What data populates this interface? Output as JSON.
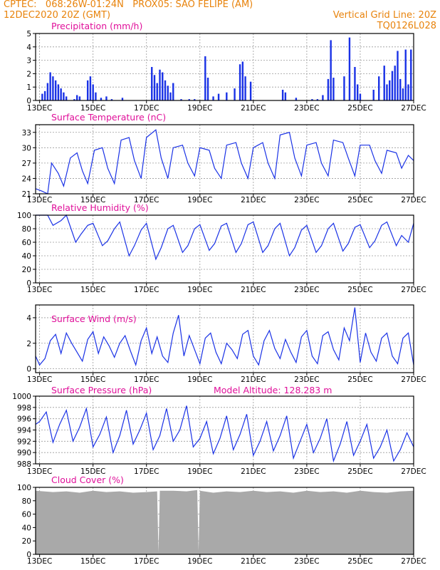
{
  "header": {
    "line1_left": "CPTEC:   068:26W-01:24N   PROX05: SAO FELIPE (AM)",
    "line2_left": "12DEC2020 20Z (GMT)",
    "line2_right": "Vertical Grid Line: 20Z",
    "line3_right": "TQ0126L028"
  },
  "colors": {
    "header": "#e8830c",
    "title": "#e0109a",
    "series": "#1a32e6",
    "cloud": "#a9a9a9",
    "grid": "#9a9a9a"
  },
  "x_ticks": [
    "13DEC",
    "15DEC",
    "17DEC",
    "19DEC",
    "21DEC",
    "23DEC",
    "25DEC",
    "27DEC"
  ],
  "chart_data": [
    {
      "type": "bar",
      "title": "Precipitation (mm/h)",
      "x_range_days": [
        12.85,
        27.0
      ],
      "ylim": [
        0,
        5
      ],
      "yticks": [
        0,
        1,
        2,
        3,
        4,
        5
      ],
      "grid": true,
      "series": [
        {
          "x": [
            13.1,
            13.2,
            13.3,
            13.4,
            13.5,
            13.6,
            13.7,
            13.8,
            13.9,
            14.0,
            14.3,
            14.4,
            14.5,
            14.8,
            14.9,
            15.0,
            15.1,
            15.3,
            15.5,
            15.7,
            16.1,
            17.2,
            17.3,
            17.4,
            17.5,
            17.6,
            17.7,
            17.8,
            17.9,
            18.0,
            18.3,
            18.6,
            18.8,
            19.2,
            19.3,
            19.5,
            19.7,
            20.0,
            20.3,
            20.5,
            20.6,
            20.7,
            20.9,
            22.1,
            22.2,
            22.6,
            23.2,
            23.4,
            23.6,
            23.8,
            23.9,
            24.0,
            24.4,
            24.6,
            24.8,
            24.9,
            25.0,
            25.5,
            25.7,
            25.9,
            26.0,
            26.1,
            26.2,
            26.3,
            26.4,
            26.5,
            26.6,
            26.7,
            26.8,
            26.9
          ],
          "values": [
            0.5,
            0.7,
            1.3,
            2.1,
            1.8,
            1.5,
            1.2,
            0.9,
            0.6,
            0.3,
            0.1,
            0.4,
            0.3,
            1.5,
            1.8,
            1.2,
            0.6,
            0.2,
            0.3,
            0.1,
            0.2,
            2.5,
            1.9,
            1.3,
            2.3,
            2.1,
            1.5,
            1.1,
            0.6,
            1.3,
            0.1,
            0.1,
            0.1,
            3.3,
            1.7,
            0.3,
            0.5,
            0.6,
            0.9,
            2.7,
            2.9,
            1.8,
            1.4,
            0.8,
            0.6,
            0.2,
            0.1,
            0.1,
            0.4,
            1.6,
            4.5,
            1.7,
            1.8,
            4.7,
            2.5,
            1.2,
            0.5,
            0.8,
            1.8,
            2.6,
            1.2,
            1.5,
            2.2,
            2.6,
            3.7,
            1.6,
            0.9,
            3.8,
            1.2,
            3.8
          ]
        }
      ]
    },
    {
      "type": "line",
      "title": "Surface Temperature (nC)",
      "ylim": [
        21,
        34.5
      ],
      "yticks": [
        21,
        24,
        27,
        30,
        33
      ],
      "grid": true,
      "series": [
        {
          "x": [
            12.85,
            13.1,
            13.3,
            13.45,
            13.7,
            13.9,
            14.15,
            14.4,
            14.6,
            14.8,
            15.05,
            15.35,
            15.55,
            15.8,
            16.05,
            16.35,
            16.55,
            16.8,
            17.0,
            17.35,
            17.55,
            17.8,
            18.0,
            18.35,
            18.55,
            18.8,
            19.0,
            19.35,
            19.55,
            19.8,
            20.0,
            20.35,
            20.55,
            20.8,
            21.0,
            21.35,
            21.55,
            21.8,
            22.0,
            22.35,
            22.55,
            22.8,
            23.0,
            23.35,
            23.55,
            23.8,
            24.0,
            24.35,
            24.55,
            24.8,
            25.0,
            25.35,
            25.55,
            25.8,
            26.0,
            26.35,
            26.55,
            26.8,
            27.0
          ],
          "values": [
            22.0,
            21.5,
            21.0,
            27.0,
            25.0,
            22.5,
            28.0,
            29.0,
            25.5,
            23.0,
            29.5,
            30.0,
            26.0,
            23.0,
            31.5,
            32.0,
            27.5,
            24.0,
            32.0,
            33.5,
            28.0,
            24.0,
            30.0,
            30.5,
            27.0,
            24.5,
            30.0,
            29.5,
            26.0,
            24.0,
            30.5,
            31.0,
            27.0,
            24.0,
            30.0,
            31.0,
            27.0,
            24.0,
            32.5,
            33.0,
            28.0,
            24.5,
            30.5,
            31.0,
            27.0,
            24.5,
            31.5,
            31.0,
            28.0,
            24.5,
            30.5,
            30.5,
            27.5,
            25.0,
            29.5,
            29.0,
            26.0,
            28.5,
            27.5
          ]
        }
      ]
    },
    {
      "type": "line",
      "title": "Relative Humidity (%)",
      "ylim": [
        0,
        100
      ],
      "yticks": [
        0,
        20,
        40,
        60,
        80,
        100
      ],
      "grid": true,
      "series": [
        {
          "x": [
            12.85,
            13.0,
            13.3,
            13.5,
            13.8,
            14.0,
            14.35,
            14.55,
            14.8,
            15.0,
            15.35,
            15.55,
            15.8,
            16.0,
            16.35,
            16.55,
            16.8,
            17.0,
            17.35,
            17.55,
            17.8,
            18.0,
            18.35,
            18.55,
            18.8,
            19.0,
            19.35,
            19.55,
            19.8,
            20.0,
            20.35,
            20.55,
            20.8,
            21.0,
            21.35,
            21.55,
            21.8,
            22.0,
            22.35,
            22.55,
            22.8,
            23.0,
            23.35,
            23.55,
            23.8,
            24.0,
            24.35,
            24.55,
            24.8,
            25.0,
            25.35,
            25.55,
            25.8,
            26.0,
            26.35,
            26.55,
            26.8,
            27.0
          ],
          "values": [
            100,
            100,
            100,
            85,
            92,
            100,
            60,
            72,
            85,
            88,
            55,
            62,
            80,
            90,
            40,
            55,
            78,
            88,
            35,
            52,
            80,
            85,
            45,
            55,
            80,
            86,
            48,
            58,
            84,
            88,
            45,
            58,
            86,
            90,
            45,
            55,
            80,
            88,
            40,
            52,
            78,
            85,
            45,
            55,
            80,
            88,
            47,
            58,
            82,
            86,
            52,
            62,
            85,
            90,
            55,
            70,
            60,
            88
          ]
        }
      ]
    },
    {
      "type": "line",
      "title": "Surface Wind (m/s)",
      "ylim": [
        -0.3,
        5
      ],
      "yticks": [
        0,
        2,
        4
      ],
      "grid": true,
      "series": [
        {
          "x": [
            12.85,
            13.0,
            13.2,
            13.4,
            13.6,
            13.8,
            14.0,
            14.2,
            14.4,
            14.6,
            14.8,
            15.0,
            15.2,
            15.4,
            15.6,
            15.8,
            16.0,
            16.2,
            16.4,
            16.6,
            16.8,
            17.0,
            17.2,
            17.4,
            17.6,
            17.8,
            18.0,
            18.2,
            18.4,
            18.6,
            18.8,
            19.0,
            19.2,
            19.4,
            19.6,
            19.8,
            20.0,
            20.2,
            20.4,
            20.6,
            20.8,
            21.0,
            21.2,
            21.4,
            21.6,
            21.8,
            22.0,
            22.2,
            22.4,
            22.6,
            22.8,
            23.0,
            23.2,
            23.4,
            23.6,
            23.8,
            24.0,
            24.2,
            24.4,
            24.6,
            24.8,
            25.0,
            25.2,
            25.4,
            25.6,
            25.8,
            26.0,
            26.2,
            26.4,
            26.6,
            26.8,
            27.0
          ],
          "values": [
            1.0,
            0.3,
            0.8,
            2.2,
            2.7,
            1.2,
            2.8,
            2.0,
            1.3,
            0.6,
            2.3,
            2.9,
            1.2,
            2.5,
            1.8,
            0.9,
            2.0,
            2.6,
            1.4,
            0.3,
            2.2,
            3.2,
            1.2,
            2.5,
            1.0,
            0.5,
            2.8,
            4.2,
            1.0,
            2.6,
            1.5,
            0.4,
            2.4,
            2.8,
            1.3,
            0.4,
            2.0,
            1.5,
            0.8,
            2.7,
            3.0,
            1.0,
            0.3,
            2.2,
            3.0,
            1.6,
            0.8,
            2.3,
            1.3,
            0.5,
            2.5,
            3.0,
            1.0,
            0.4,
            2.6,
            2.9,
            1.5,
            0.7,
            3.2,
            2.2,
            4.8,
            0.5,
            2.8,
            1.3,
            0.6,
            2.4,
            2.8,
            1.0,
            0.4,
            2.4,
            2.8,
            0.3
          ]
        }
      ]
    },
    {
      "type": "line",
      "title": "Surface Pressure (hPa)",
      "annotation": "Model Altitude: 128.283 m",
      "ylim": [
        988,
        1000
      ],
      "yticks": [
        988,
        990,
        992,
        994,
        996,
        998,
        1000
      ],
      "grid": true,
      "series": [
        {
          "x": [
            12.85,
            13.0,
            13.25,
            13.5,
            13.75,
            14.0,
            14.25,
            14.5,
            14.75,
            15.0,
            15.25,
            15.5,
            15.75,
            16.0,
            16.25,
            16.5,
            16.75,
            17.0,
            17.25,
            17.5,
            17.75,
            18.0,
            18.25,
            18.5,
            18.75,
            19.0,
            19.25,
            19.5,
            19.75,
            20.0,
            20.25,
            20.5,
            20.75,
            21.0,
            21.25,
            21.5,
            21.75,
            22.0,
            22.25,
            22.5,
            22.75,
            23.0,
            23.25,
            23.5,
            23.75,
            24.0,
            24.25,
            24.5,
            24.75,
            25.0,
            25.25,
            25.5,
            25.75,
            26.0,
            26.25,
            26.5,
            26.75,
            27.0
          ],
          "values": [
            995.0,
            995.5,
            997.2,
            991.8,
            995.0,
            997.5,
            992.0,
            994.5,
            997.8,
            991.0,
            993.2,
            996.3,
            990.0,
            993.0,
            997.5,
            991.5,
            994.0,
            997.0,
            990.5,
            993.0,
            997.8,
            992.0,
            994.0,
            998.3,
            991.0,
            992.5,
            995.5,
            989.8,
            992.5,
            996.5,
            990.5,
            993.2,
            996.8,
            989.5,
            992.0,
            995.5,
            990.3,
            993.0,
            996.5,
            989.0,
            992.0,
            995.0,
            990.0,
            992.5,
            996.0,
            988.5,
            991.5,
            995.5,
            989.5,
            992.0,
            995.0,
            989.0,
            991.0,
            994.0,
            988.5,
            990.5,
            993.5,
            991.0
          ]
        }
      ]
    },
    {
      "type": "area",
      "title": "Cloud Cover (%)",
      "ylim": [
        0,
        100
      ],
      "yticks": [
        0,
        20,
        40,
        60,
        80,
        100
      ],
      "grid": true,
      "series": [
        {
          "x": [
            12.85,
            13.5,
            14.0,
            14.5,
            15.0,
            15.5,
            16.0,
            16.5,
            17.0,
            17.4,
            17.45,
            17.5,
            18.0,
            18.5,
            18.9,
            18.95,
            19.0,
            19.5,
            20.0,
            20.5,
            21.0,
            21.5,
            22.0,
            22.5,
            23.0,
            23.5,
            24.0,
            24.5,
            25.0,
            25.5,
            26.0,
            26.5,
            27.0
          ],
          "values": [
            95,
            93,
            94,
            92,
            95,
            93,
            94,
            92,
            93,
            94,
            3,
            95,
            95,
            94,
            96,
            5,
            95,
            92,
            94,
            93,
            95,
            93,
            94,
            92,
            95,
            93,
            94,
            92,
            95,
            93,
            92,
            94,
            95
          ]
        }
      ]
    }
  ]
}
